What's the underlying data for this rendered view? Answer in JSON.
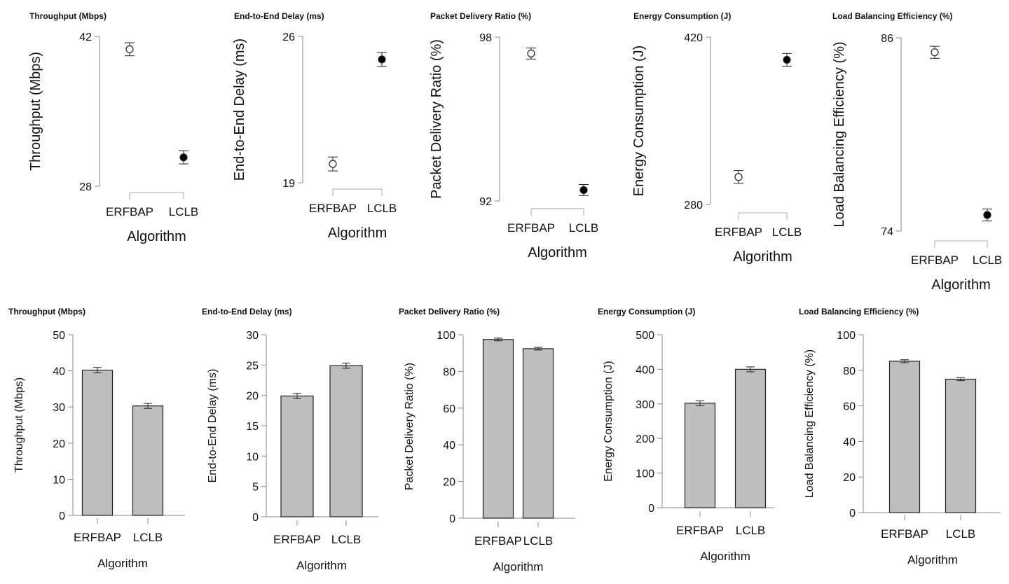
{
  "chart_data": [
    {
      "type": "scatter",
      "title": "Throughput (Mbps)",
      "categories": [
        "ERFBAP",
        "LCLB"
      ],
      "values": [
        40.8,
        30.7
      ],
      "errors": [
        0.35,
        0.35
      ],
      "ylim": [
        28,
        42
      ],
      "yticks": [
        28,
        42
      ],
      "ylabel": "Throughput (Mbps)",
      "xlabel": "Algorithm",
      "markers": [
        "open",
        "filled"
      ],
      "grid": false
    },
    {
      "type": "scatter",
      "title": "End-to-End Delay (ms)",
      "categories": [
        "ERFBAP",
        "LCLB"
      ],
      "values": [
        19.9,
        24.9
      ],
      "errors": [
        0.2,
        0.2
      ],
      "ylim": [
        19,
        26
      ],
      "yticks": [
        19,
        26
      ],
      "ylabel": "End-to-End Delay (ms)",
      "xlabel": "Algorithm",
      "markers": [
        "open",
        "filled"
      ],
      "grid": false
    },
    {
      "type": "scatter",
      "title": "Packet Delivery Ratio (%)",
      "categories": [
        "ERFBAP",
        "LCLB"
      ],
      "values": [
        97.4,
        92.4
      ],
      "errors": [
        0.1,
        0.1
      ],
      "ylim": [
        92,
        98
      ],
      "yticks": [
        92,
        98
      ],
      "ylabel": "Packet Delivery Ratio (%)",
      "xlabel": "Algorithm",
      "markers": [
        "open",
        "filled"
      ],
      "grid": false
    },
    {
      "type": "scatter",
      "title": "Energy Consumption (J)",
      "categories": [
        "ERFBAP",
        "LCLB"
      ],
      "values": [
        303,
        401
      ],
      "errors": [
        3,
        3
      ],
      "ylim": [
        280,
        420
      ],
      "yticks": [
        280,
        420
      ],
      "ylabel": "Energy Consumption (J)",
      "xlabel": "Algorithm",
      "markers": [
        "open",
        "filled"
      ],
      "grid": false
    },
    {
      "type": "scatter",
      "title": "Load Balancing Efficiency (%)",
      "categories": [
        "ERFBAP",
        "LCLB"
      ],
      "values": [
        85.1,
        75.0
      ],
      "errors": [
        0.2,
        0.2
      ],
      "ylim": [
        74,
        86
      ],
      "yticks": [
        74,
        86
      ],
      "ylabel": "Load Balancing Efficiency (%)",
      "xlabel": "Algorithm",
      "markers": [
        "open",
        "filled"
      ],
      "grid": false
    },
    {
      "type": "bar",
      "title": "Throughput (Mbps)",
      "categories": [
        "ERFBAP",
        "LCLB"
      ],
      "values": [
        40.2,
        30.3
      ],
      "errors": [
        0.45,
        0.4
      ],
      "ylim": [
        0,
        50
      ],
      "yticks": [
        0,
        10,
        20,
        30,
        40,
        50
      ],
      "ylabel": "Throughput (Mbps)",
      "xlabel": "Algorithm",
      "bar_color": "#bebebe",
      "grid": false
    },
    {
      "type": "bar",
      "title": "End-to-End Delay (ms)",
      "categories": [
        "ERFBAP",
        "LCLB"
      ],
      "values": [
        19.9,
        24.9
      ],
      "errors": [
        0.25,
        0.25
      ],
      "ylim": [
        0,
        30
      ],
      "yticks": [
        0,
        5,
        10,
        15,
        20,
        25,
        30
      ],
      "ylabel": "End-to-End Delay (ms)",
      "xlabel": "Algorithm",
      "bar_color": "#bebebe",
      "grid": false
    },
    {
      "type": "bar",
      "title": "Packet Delivery Ratio (%)",
      "categories": [
        "ERFBAP",
        "LCLB"
      ],
      "values": [
        97.4,
        92.4
      ],
      "errors": [
        0.15,
        0.15
      ],
      "ylim": [
        0,
        100
      ],
      "yticks": [
        0,
        20,
        40,
        60,
        80,
        100
      ],
      "ylabel": "Packet Delivery Ratio (%)",
      "xlabel": "Algorithm",
      "bar_color": "#bebebe",
      "grid": false
    },
    {
      "type": "bar",
      "title": "Energy Consumption (J)",
      "categories": [
        "ERFBAP",
        "LCLB"
      ],
      "values": [
        302,
        400
      ],
      "errors": [
        4,
        4
      ],
      "ylim": [
        0,
        500
      ],
      "yticks": [
        0,
        100,
        200,
        300,
        400,
        500
      ],
      "ylabel": "Energy Consumption (J)",
      "xlabel": "Algorithm",
      "bar_color": "#bebebe",
      "grid": false
    },
    {
      "type": "bar",
      "title": "Load Balancing Efficiency (%)",
      "categories": [
        "ERFBAP",
        "LCLB"
      ],
      "values": [
        85.1,
        75.0
      ],
      "errors": [
        0.25,
        0.25
      ],
      "ylim": [
        0,
        100
      ],
      "yticks": [
        0,
        20,
        40,
        60,
        80,
        100
      ],
      "ylabel": "Load Balancing Efficiency (%)",
      "xlabel": "Algorithm",
      "bar_color": "#bebebe",
      "grid": false
    }
  ]
}
